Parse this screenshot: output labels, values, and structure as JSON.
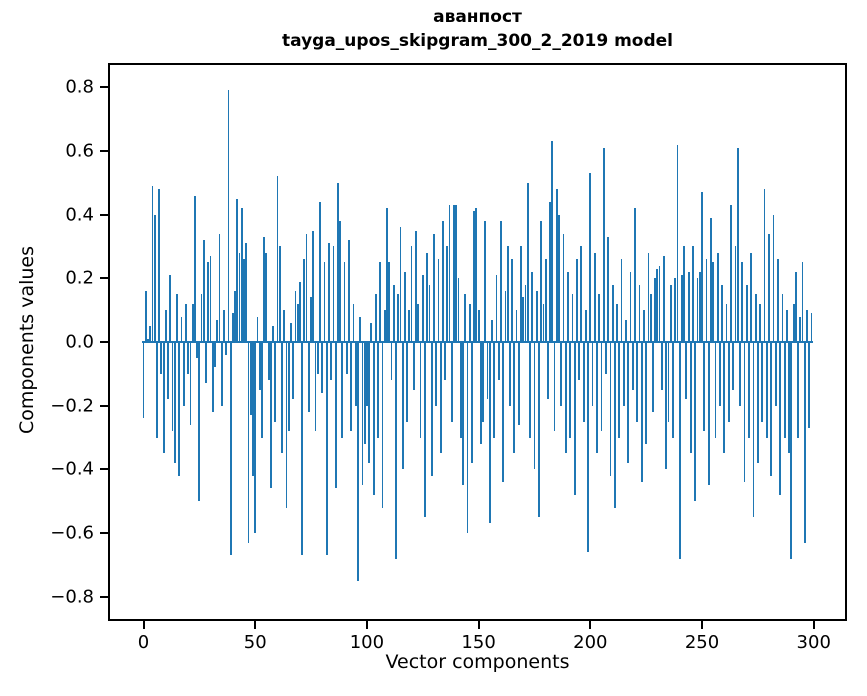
{
  "figure": {
    "background": "#ffffff"
  },
  "chart_data": {
    "type": "bar",
    "title_line1": "аванпост",
    "title_line2": "tayga_upos_skipgram_300_2_2019 model",
    "xlabel": "Vector components",
    "ylabel": "Components values",
    "bar_color": "#1f77b4",
    "axis_color": "#000000",
    "grid": false,
    "legend_position": "none",
    "n_components": 300,
    "x_ticks": [
      0,
      50,
      100,
      150,
      200,
      250,
      300
    ],
    "x_tick_labels": [
      "0",
      "50",
      "100",
      "150",
      "200",
      "250",
      "300"
    ],
    "y_ticks": [
      0.8,
      0.6,
      0.4,
      0.2,
      0.0,
      -0.2,
      -0.4,
      -0.6,
      -0.8
    ],
    "y_tick_labels": [
      "0.8",
      "0.6",
      "0.4",
      "0.2",
      "0.0",
      "−0.2",
      "−0.4",
      "−0.6",
      "−0.8"
    ],
    "xlim": [
      -15,
      314
    ],
    "ylim": [
      -0.87,
      0.87
    ],
    "values": [
      -0.24,
      0.16,
      0.01,
      0.05,
      0.49,
      0.4,
      -0.3,
      0.48,
      -0.1,
      -0.35,
      0.1,
      -0.18,
      0.21,
      -0.28,
      -0.38,
      0.15,
      -0.42,
      0.08,
      -0.2,
      0.12,
      -0.1,
      -0.26,
      0.12,
      0.46,
      -0.05,
      -0.5,
      0.15,
      0.32,
      -0.13,
      0.25,
      0.27,
      -0.22,
      -0.08,
      0.07,
      0.34,
      -0.2,
      0.1,
      -0.04,
      0.79,
      -0.67,
      0.09,
      0.16,
      0.45,
      0.28,
      0.42,
      0.26,
      0.31,
      -0.63,
      -0.23,
      -0.42,
      -0.6,
      0.08,
      -0.15,
      -0.3,
      0.33,
      0.28,
      -0.12,
      -0.46,
      0.05,
      -0.25,
      0.52,
      0.3,
      -0.35,
      0.1,
      -0.52,
      -0.28,
      0.06,
      -0.18,
      0.16,
      0.12,
      0.19,
      -0.67,
      0.26,
      0.34,
      -0.22,
      0.14,
      0.35,
      -0.28,
      -0.1,
      0.44,
      -0.16,
      0.25,
      -0.67,
      0.31,
      -0.12,
      0.3,
      -0.46,
      0.5,
      0.38,
      -0.3,
      0.25,
      -0.1,
      0.32,
      -0.28,
      0.12,
      -0.2,
      -0.75,
      0.08,
      -0.45,
      -0.32,
      -0.2,
      -0.38,
      0.06,
      -0.48,
      0.15,
      -0.3,
      0.25,
      -0.52,
      0.1,
      0.42,
      0.25,
      -0.12,
      0.18,
      -0.68,
      0.15,
      0.36,
      -0.4,
      0.22,
      -0.25,
      0.1,
      0.3,
      -0.15,
      0.35,
      0.12,
      -0.3,
      0.21,
      -0.55,
      0.28,
      0.18,
      -0.42,
      0.34,
      -0.2,
      0.26,
      -0.35,
      0.38,
      -0.12,
      0.3,
      0.43,
      -0.25,
      0.43,
      0.43,
      0.2,
      -0.3,
      -0.45,
      0.15,
      -0.6,
      0.12,
      -0.38,
      0.41,
      0.42,
      0.1,
      -0.32,
      -0.25,
      0.38,
      -0.18,
      -0.57,
      0.07,
      -0.3,
      0.21,
      -0.12,
      0.38,
      -0.44,
      0.16,
      0.3,
      -0.2,
      0.26,
      -0.35,
      0.1,
      -0.26,
      0.3,
      0.14,
      0.18,
      0.5,
      -0.3,
      0.22,
      -0.4,
      0.16,
      -0.55,
      0.38,
      0.12,
      0.26,
      -0.18,
      0.44,
      0.63,
      -0.28,
      0.48,
      0.4,
      -0.2,
      0.34,
      -0.35,
      0.22,
      -0.3,
      0.15,
      -0.48,
      0.26,
      -0.12,
      0.3,
      -0.25,
      0.1,
      -0.66,
      0.53,
      -0.2,
      0.28,
      -0.35,
      0.15,
      -0.28,
      0.61,
      -0.1,
      0.33,
      -0.42,
      0.18,
      -0.52,
      0.12,
      -0.3,
      0.26,
      -0.2,
      0.07,
      -0.38,
      0.22,
      -0.15,
      0.42,
      -0.25,
      0.18,
      -0.44,
      0.1,
      -0.32,
      0.28,
      0.15,
      -0.22,
      0.2,
      0.23,
      0.24,
      -0.15,
      0.27,
      -0.4,
      -0.25,
      0.18,
      -0.3,
      0.2,
      0.62,
      -0.68,
      0.21,
      0.3,
      -0.18,
      0.22,
      -0.35,
      0.3,
      -0.5,
      0.2,
      0.22,
      0.47,
      -0.28,
      0.26,
      -0.45,
      0.39,
      0.25,
      -0.3,
      0.28,
      -0.2,
      0.18,
      -0.35,
      0.12,
      -0.25,
      0.43,
      -0.15,
      0.3,
      0.61,
      -0.2,
      0.25,
      -0.44,
      0.18,
      -0.3,
      0.28,
      -0.55,
      0.15,
      -0.38,
      0.12,
      -0.25,
      0.48,
      -0.3,
      0.34,
      -0.42,
      0.4,
      -0.2,
      0.26,
      -0.48,
      0.15,
      -0.3,
      0.1,
      -0.35,
      -0.68,
      0.12,
      0.22,
      -0.3,
      0.08,
      0.25,
      -0.63,
      0.1,
      -0.27,
      0.09
    ]
  }
}
